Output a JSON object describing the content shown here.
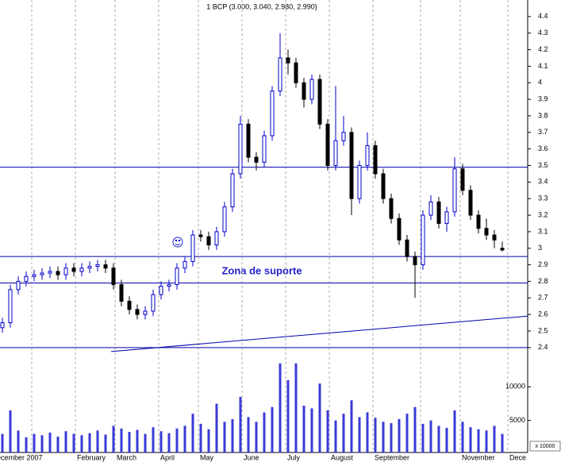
{
  "chart_data": {
    "type": "candlestick",
    "title": "1 BCP (3.000, 3.040, 2.980, 2.990)",
    "annotation": "Zona de suporte",
    "volume_unit_label": "x 10000",
    "up_color": "#0000cc",
    "down_color": "#000000",
    "line_color": "#0000aa",
    "volume_color": "#3a3ad8",
    "open": [
      2.52,
      2.55,
      2.75,
      2.8,
      2.83,
      2.84,
      2.85,
      2.86,
      2.84,
      2.88,
      2.86,
      2.88,
      2.89,
      2.9,
      2.88,
      2.78,
      2.68,
      2.63,
      2.6,
      2.62,
      2.72,
      2.77,
      2.78,
      2.88,
      2.92,
      3.08,
      3.07,
      3.02,
      3.1,
      3.25,
      3.45,
      3.75,
      3.55,
      3.52,
      3.68,
      3.95,
      4.15,
      4.12,
      4.0,
      3.9,
      4.02,
      3.75,
      3.5,
      3.65,
      3.7,
      3.3,
      3.5,
      3.62,
      3.45,
      3.3,
      3.18,
      3.05,
      2.95,
      2.9,
      3.2,
      3.28,
      3.15,
      3.22,
      3.48,
      3.35,
      3.2,
      3.12,
      3.08,
      3.0
    ],
    "high": [
      2.58,
      2.78,
      2.83,
      2.86,
      2.87,
      2.88,
      2.89,
      2.89,
      2.91,
      2.91,
      2.91,
      2.92,
      2.93,
      2.93,
      2.91,
      2.81,
      2.71,
      2.66,
      2.65,
      2.75,
      2.8,
      2.81,
      2.91,
      2.95,
      3.11,
      3.11,
      3.1,
      3.13,
      3.28,
      3.48,
      3.8,
      3.78,
      3.58,
      3.71,
      3.98,
      4.3,
      4.2,
      4.15,
      4.03,
      4.05,
      4.05,
      3.78,
      3.98,
      3.8,
      3.73,
      3.53,
      3.7,
      3.65,
      3.48,
      3.33,
      3.21,
      3.08,
      2.98,
      3.23,
      3.32,
      3.31,
      3.25,
      3.55,
      3.51,
      3.38,
      3.23,
      3.18,
      3.11,
      3.04
    ],
    "low": [
      2.49,
      2.52,
      2.72,
      2.77,
      2.8,
      2.81,
      2.82,
      2.81,
      2.81,
      2.83,
      2.83,
      2.85,
      2.86,
      2.85,
      2.75,
      2.65,
      2.6,
      2.57,
      2.57,
      2.59,
      2.69,
      2.74,
      2.75,
      2.85,
      2.89,
      3.04,
      2.99,
      2.99,
      3.07,
      3.22,
      3.42,
      3.52,
      3.47,
      3.49,
      3.65,
      3.92,
      4.05,
      3.97,
      3.85,
      3.87,
      3.72,
      3.47,
      3.47,
      3.62,
      3.2,
      3.27,
      3.47,
      3.42,
      3.27,
      3.15,
      3.02,
      2.92,
      2.7,
      2.87,
      3.17,
      3.12,
      3.1,
      3.19,
      3.32,
      3.17,
      3.09,
      3.05,
      3.0,
      2.98
    ],
    "close": [
      2.55,
      2.75,
      2.8,
      2.83,
      2.84,
      2.85,
      2.86,
      2.84,
      2.88,
      2.86,
      2.88,
      2.89,
      2.9,
      2.88,
      2.78,
      2.68,
      2.63,
      2.6,
      2.62,
      2.72,
      2.77,
      2.78,
      2.88,
      2.92,
      3.08,
      3.07,
      3.02,
      3.1,
      3.25,
      3.45,
      3.75,
      3.55,
      3.52,
      3.68,
      3.95,
      4.15,
      4.12,
      4.0,
      3.9,
      4.02,
      3.75,
      3.5,
      3.65,
      3.7,
      3.3,
      3.5,
      3.62,
      3.45,
      3.3,
      3.18,
      3.05,
      2.95,
      2.9,
      3.2,
      3.28,
      3.15,
      3.22,
      3.48,
      3.35,
      3.2,
      3.12,
      3.08,
      3.05,
      2.99
    ],
    "volume": [
      3000,
      6500,
      3500,
      2500,
      3000,
      2800,
      3200,
      2600,
      3400,
      3000,
      2800,
      3100,
      3500,
      2900,
      4200,
      3800,
      3300,
      3600,
      3000,
      4000,
      3400,
      3100,
      3800,
      4200,
      6000,
      4500,
      3700,
      7500,
      4800,
      5200,
      8500,
      5500,
      4800,
      6200,
      7000,
      13500,
      11000,
      13500,
      7200,
      6800,
      10500,
      6500,
      5000,
      6000,
      8000,
      5500,
      6200,
      5400,
      4800,
      4600,
      5200,
      6000,
      7000,
      4500,
      5000,
      4200,
      3900,
      6500,
      4800,
      4000,
      3700,
      3500,
      4200,
      3000
    ],
    "xticks": [
      {
        "value": -0.9,
        "label": "ecember 2007"
      },
      {
        "value": 9.2,
        "label": "February"
      },
      {
        "value": 14.2,
        "label": "March"
      },
      {
        "value": 19.7,
        "label": "April"
      },
      {
        "value": 24.7,
        "label": "May"
      },
      {
        "value": 30.2,
        "label": "June"
      },
      {
        "value": 35.7,
        "label": "July"
      },
      {
        "value": 41.2,
        "label": "August"
      },
      {
        "value": 46.7,
        "label": "September"
      },
      {
        "value": 57.7,
        "label": "November"
      },
      {
        "value": 63.7,
        "label": "Dece"
      }
    ],
    "xgrid": [
      3.7,
      9.2,
      14.2,
      19.7,
      24.7,
      30.2,
      35.7,
      41.2,
      46.7,
      52.7,
      57.7,
      63.7
    ],
    "xlim": [
      -0.3,
      66.2
    ],
    "ylim": [
      2.38,
      4.5
    ],
    "yticks": [
      2.4,
      2.5,
      2.6,
      2.7,
      2.8,
      2.9,
      3.0,
      3.1,
      3.2,
      3.3,
      3.4,
      3.5,
      3.6,
      3.7,
      3.8,
      3.9,
      4.0,
      4.1,
      4.2,
      4.3,
      4.4
    ],
    "volume_lim": [
      0,
      15000
    ],
    "volume_ticks": [
      5000,
      10000
    ],
    "hlines": [
      3.49,
      2.95,
      2.79,
      2.4
    ],
    "trendline": {
      "x": [
        13.7,
        66.2
      ],
      "y": [
        2.376,
        2.59
      ]
    }
  }
}
